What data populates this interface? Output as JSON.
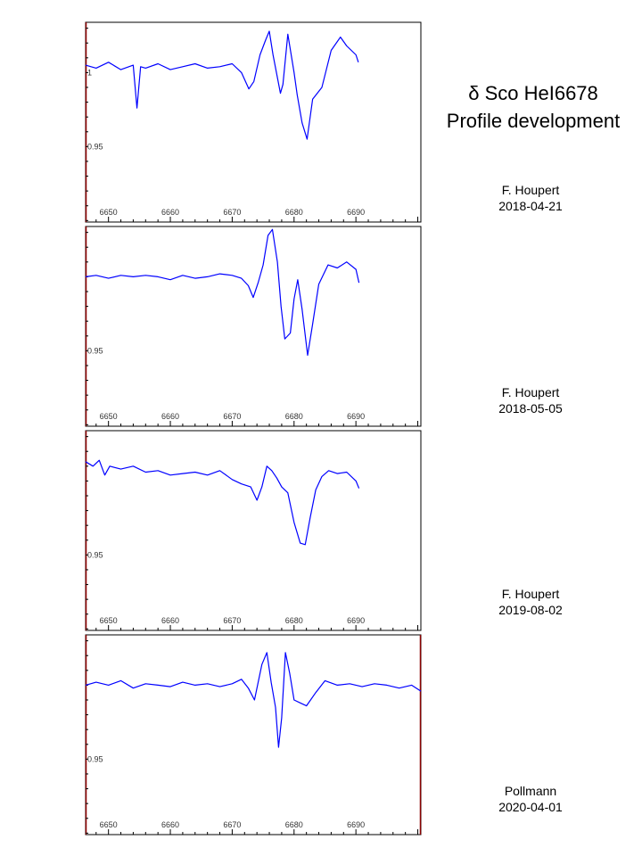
{
  "title": {
    "line1": "δ Sco HeI6678",
    "line2": "Profile development"
  },
  "colors": {
    "trace": "#0000ff",
    "frame": "#000000",
    "left_axis": "#8b0000"
  },
  "panels": [
    {
      "observer": "F. Houpert",
      "date": "2018-04-21"
    },
    {
      "observer": "F. Houpert",
      "date": "2018-05-05"
    },
    {
      "observer": "F. Houpert",
      "date": "2019-08-02"
    },
    {
      "observer": "Pollmann",
      "date": "2020-04-01"
    }
  ],
  "chart_data": [
    {
      "type": "line",
      "x_ticks": [
        6650,
        6660,
        6670,
        6680,
        6690
      ],
      "y_tick_labels": [
        {
          "value": 1,
          "label": "1"
        },
        {
          "value": 0.95,
          "label": "0.95"
        }
      ],
      "xlim": [
        6646.3,
        6700.5
      ],
      "ylim": [
        0.899,
        1.034
      ],
      "series": [
        {
          "x": [
            6646.3,
            6648,
            6650,
            6652,
            6654,
            6654.6,
            6655.2,
            6656,
            6658,
            6660,
            6662,
            6664,
            6666,
            6668,
            6670,
            6671.5,
            6672.7,
            6673.5,
            6674.5,
            6675.4,
            6676,
            6676.6,
            6677.8,
            6678.2,
            6679,
            6680,
            6680.5,
            6681.3,
            6682.1,
            6683,
            6684.5,
            6686,
            6687.5,
            6688.5,
            6690,
            6690.4
          ],
          "y": [
            1.005,
            1.003,
            1.007,
            1.002,
            1.005,
            0.976,
            1.004,
            1.003,
            1.006,
            1.002,
            1.004,
            1.006,
            1.003,
            1.004,
            1.006,
            1.0,
            0.989,
            0.994,
            1.012,
            1.022,
            1.028,
            1.012,
            0.986,
            0.992,
            1.026,
            1.0,
            0.985,
            0.966,
            0.955,
            0.982,
            0.99,
            1.015,
            1.024,
            1.018,
            1.012,
            1.007
          ]
        }
      ]
    },
    {
      "type": "line",
      "x_ticks": [
        6650,
        6660,
        6670,
        6680,
        6690
      ],
      "y_tick_labels": [
        {
          "value": 0.95,
          "label": "0.95"
        }
      ],
      "xlim": [
        6646.3,
        6700.5
      ],
      "ylim": [
        0.899,
        1.034
      ],
      "series": [
        {
          "x": [
            6646.3,
            6648,
            6650,
            6652,
            6654,
            6656,
            6658,
            6660,
            6662,
            6664,
            6666,
            6668,
            6670,
            6671.5,
            6672.6,
            6673.4,
            6674.2,
            6675,
            6675.8,
            6676.5,
            6677.3,
            6677.9,
            6678.5,
            6679.4,
            6680,
            6680.6,
            6681.3,
            6682.2,
            6683,
            6684,
            6685.5,
            6687,
            6688.5,
            6690,
            6690.5
          ],
          "y": [
            1.0,
            1.001,
            0.999,
            1.001,
            1.0,
            1.001,
            1.0,
            0.998,
            1.001,
            0.999,
            1.0,
            1.002,
            1.001,
            0.999,
            0.994,
            0.986,
            0.996,
            1.008,
            1.028,
            1.032,
            1.01,
            0.98,
            0.958,
            0.962,
            0.985,
            0.998,
            0.978,
            0.947,
            0.968,
            0.995,
            1.008,
            1.006,
            1.01,
            1.005,
            0.996
          ]
        }
      ]
    },
    {
      "type": "line",
      "x_ticks": [
        6650,
        6660,
        6670,
        6680,
        6690
      ],
      "y_tick_labels": [
        {
          "value": 0.95,
          "label": "0.95"
        }
      ],
      "xlim": [
        6646.3,
        6700.5
      ],
      "ylim": [
        0.899,
        1.034
      ],
      "series": [
        {
          "x": [
            6646.3,
            6647.5,
            6648.5,
            6649.4,
            6650.2,
            6652,
            6654,
            6656,
            6658,
            6660,
            6662,
            6664,
            6666,
            6668,
            6670,
            6671.5,
            6673,
            6674,
            6674.8,
            6675.6,
            6676.4,
            6677.2,
            6678,
            6679,
            6680,
            6681,
            6681.8,
            6682.6,
            6683.5,
            6684.5,
            6685.6,
            6687,
            6688.5,
            6690,
            6690.5
          ],
          "y": [
            1.013,
            1.01,
            1.014,
            1.004,
            1.01,
            1.008,
            1.01,
            1.006,
            1.007,
            1.004,
            1.005,
            1.006,
            1.004,
            1.007,
            1.001,
            0.998,
            0.996,
            0.987,
            0.996,
            1.01,
            1.007,
            1.002,
            0.996,
            0.992,
            0.972,
            0.958,
            0.957,
            0.975,
            0.994,
            1.003,
            1.007,
            1.005,
            1.006,
            1.0,
            0.995
          ]
        }
      ]
    },
    {
      "type": "line",
      "x_ticks": [
        6650,
        6660,
        6670,
        6680,
        6690
      ],
      "y_tick_labels": [
        {
          "value": 0.95,
          "label": "0.95"
        }
      ],
      "xlim": [
        6646.3,
        6700.5
      ],
      "ylim": [
        0.899,
        1.034
      ],
      "series": [
        {
          "x": [
            6646.3,
            6648,
            6650,
            6652,
            6654,
            6656,
            6658,
            6660,
            6662,
            6664,
            6666,
            6668,
            6670,
            6671.5,
            6672.6,
            6673.6,
            6674.8,
            6675.6,
            6676.3,
            6677,
            6677.5,
            6678,
            6678.6,
            6679.3,
            6680,
            6681,
            6682,
            6683.5,
            6685,
            6687,
            6689,
            6691,
            6693,
            6695,
            6697,
            6699,
            6700.5
          ],
          "y": [
            1.0,
            1.002,
            1.0,
            1.003,
            0.998,
            1.001,
            1.0,
            0.999,
            1.002,
            1.0,
            1.001,
            0.999,
            1.001,
            1.004,
            0.998,
            0.99,
            1.014,
            1.022,
            1.002,
            0.985,
            0.958,
            0.978,
            1.022,
            1.008,
            0.99,
            0.988,
            0.986,
            0.995,
            1.003,
            1.0,
            1.001,
            0.999,
            1.001,
            1.0,
            0.998,
            1.0,
            0.996
          ]
        }
      ]
    }
  ]
}
